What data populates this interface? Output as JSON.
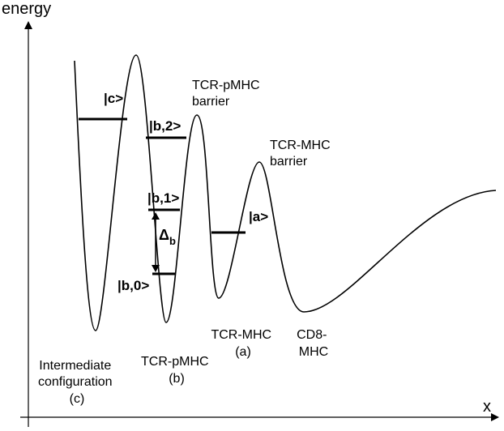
{
  "axes": {
    "y_label": "energy",
    "x_label": "x"
  },
  "states": [
    {
      "label": "|c>"
    },
    {
      "label": "|b,2>"
    },
    {
      "label": "|b,1>"
    },
    {
      "label": "|b,0>"
    },
    {
      "label": "|a>"
    }
  ],
  "gap": {
    "symbol": "Δ",
    "subscript": "b"
  },
  "annotations": [
    {
      "lines": [
        "TCR-pMHC",
        "barrier"
      ]
    },
    {
      "lines": [
        "TCR-MHC",
        "barrier"
      ]
    },
    {
      "lines": [
        "TCR-MHC",
        "(a)"
      ]
    },
    {
      "lines": [
        "CD8-",
        "MHC"
      ]
    },
    {
      "lines": [
        "Intermediate",
        "configuration",
        "(c)"
      ]
    },
    {
      "lines": [
        "TCR-pMHC",
        "(b)"
      ]
    }
  ]
}
